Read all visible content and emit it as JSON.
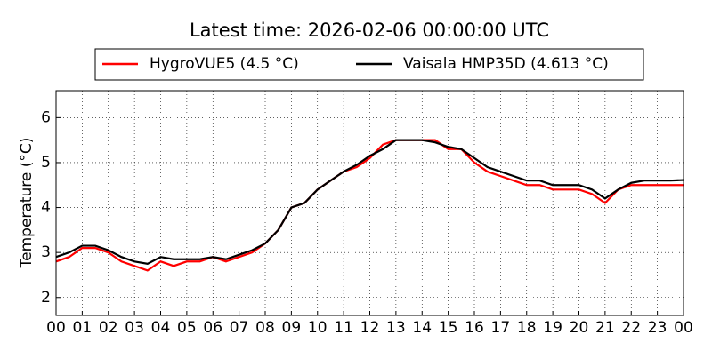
{
  "chart_data": {
    "type": "line",
    "title": "Latest time: 2026-02-06 00:00:00 UTC",
    "y_label": "Temperature (°C)",
    "x": [
      0,
      0.5,
      1,
      1.5,
      2,
      2.5,
      3,
      3.5,
      4,
      4.5,
      5,
      5.5,
      6,
      6.5,
      7,
      7.5,
      8,
      8.5,
      9,
      9.5,
      10,
      10.5,
      11,
      11.5,
      12,
      12.5,
      13,
      13.5,
      14,
      14.5,
      15,
      15.5,
      16,
      16.5,
      17,
      17.5,
      18,
      18.5,
      19,
      19.5,
      20,
      20.5,
      21,
      21.5,
      22,
      22.5,
      23,
      23.5,
      24
    ],
    "series": [
      {
        "name": "HygroVUE5 (4.5 °C)",
        "color": "#ff0000",
        "values": [
          2.8,
          2.9,
          3.1,
          3.1,
          3.0,
          2.8,
          2.7,
          2.6,
          2.8,
          2.7,
          2.8,
          2.8,
          2.9,
          2.8,
          2.9,
          3.0,
          3.2,
          3.5,
          4.0,
          4.1,
          4.4,
          4.6,
          4.8,
          4.9,
          5.1,
          5.4,
          5.5,
          5.5,
          5.5,
          5.5,
          5.3,
          5.3,
          5.0,
          4.8,
          4.7,
          4.6,
          4.5,
          4.5,
          4.4,
          4.4,
          4.4,
          4.3,
          4.1,
          4.4,
          4.5,
          4.5,
          4.5,
          4.5,
          4.5
        ]
      },
      {
        "name": "Vaisala HMP35D (4.613 °C)",
        "color": "#000000",
        "values": [
          2.9,
          3.0,
          3.15,
          3.15,
          3.05,
          2.9,
          2.8,
          2.75,
          2.9,
          2.85,
          2.85,
          2.85,
          2.9,
          2.85,
          2.95,
          3.05,
          3.2,
          3.5,
          4.0,
          4.1,
          4.4,
          4.6,
          4.8,
          4.95,
          5.15,
          5.3,
          5.5,
          5.5,
          5.5,
          5.45,
          5.35,
          5.3,
          5.1,
          4.9,
          4.8,
          4.7,
          4.6,
          4.6,
          4.5,
          4.5,
          4.5,
          4.4,
          4.2,
          4.4,
          4.55,
          4.6,
          4.6,
          4.6,
          4.613
        ]
      }
    ],
    "xlim": [
      0,
      24
    ],
    "xticks": [
      {
        "value": 0,
        "label": "00"
      },
      {
        "value": 1,
        "label": "01"
      },
      {
        "value": 2,
        "label": "02"
      },
      {
        "value": 3,
        "label": "03"
      },
      {
        "value": 4,
        "label": "04"
      },
      {
        "value": 5,
        "label": "05"
      },
      {
        "value": 6,
        "label": "06"
      },
      {
        "value": 7,
        "label": "07"
      },
      {
        "value": 8,
        "label": "08"
      },
      {
        "value": 9,
        "label": "09"
      },
      {
        "value": 10,
        "label": "10"
      },
      {
        "value": 11,
        "label": "11"
      },
      {
        "value": 12,
        "label": "12"
      },
      {
        "value": 13,
        "label": "13"
      },
      {
        "value": 14,
        "label": "14"
      },
      {
        "value": 15,
        "label": "15"
      },
      {
        "value": 16,
        "label": "16"
      },
      {
        "value": 17,
        "label": "17"
      },
      {
        "value": 18,
        "label": "18"
      },
      {
        "value": 19,
        "label": "19"
      },
      {
        "value": 20,
        "label": "20"
      },
      {
        "value": 21,
        "label": "21"
      },
      {
        "value": 22,
        "label": "22"
      },
      {
        "value": 23,
        "label": "23"
      },
      {
        "value": 24,
        "label": "00"
      }
    ],
    "ylim": [
      1.6,
      6.6
    ],
    "yticks": [
      2,
      3,
      4,
      5,
      6
    ],
    "grid": true,
    "legend": "top"
  }
}
